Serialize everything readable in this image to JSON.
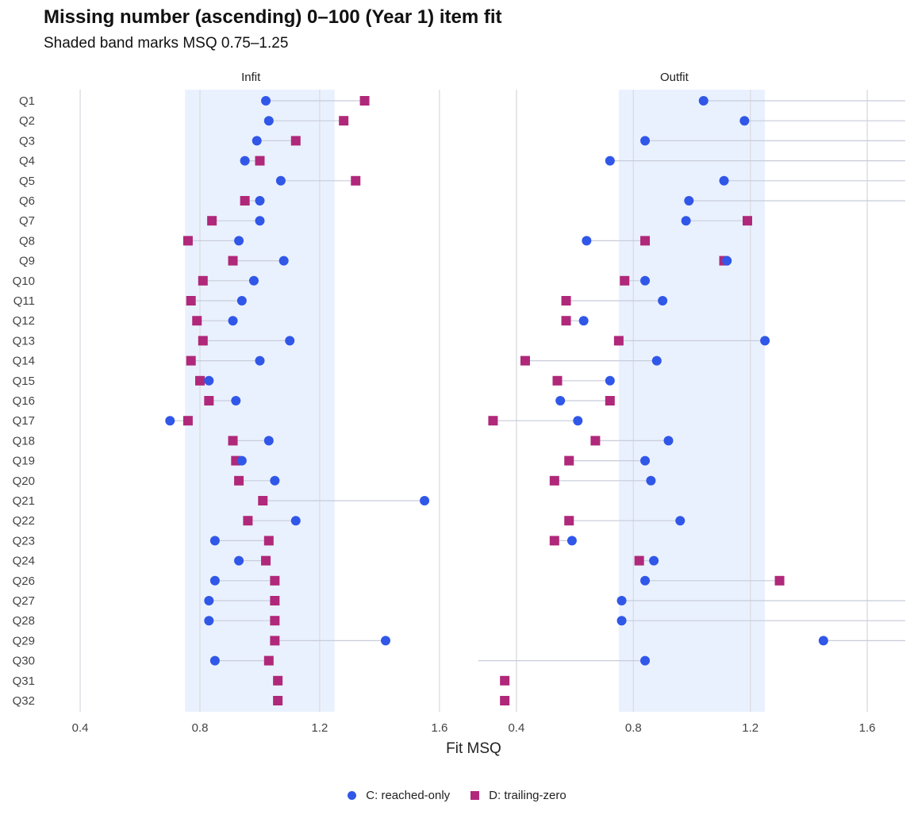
{
  "chart_data": {
    "type": "scatter",
    "title": "Missing number (ascending) 0–100 (Year 1) item fit",
    "subtitle": "Shaded band marks MSQ 0.75–1.25",
    "xlabel": "Fit MSQ",
    "panels": [
      "Infit",
      "Outfit"
    ],
    "categories": [
      "Q1",
      "Q2",
      "Q3",
      "Q4",
      "Q5",
      "Q6",
      "Q7",
      "Q8",
      "Q9",
      "Q10",
      "Q11",
      "Q12",
      "Q13",
      "Q14",
      "Q15",
      "Q16",
      "Q17",
      "Q18",
      "Q19",
      "Q20",
      "Q21",
      "Q22",
      "Q23",
      "Q24",
      "Q26",
      "Q27",
      "Q28",
      "Q29",
      "Q30",
      "Q31",
      "Q32"
    ],
    "xlim": [
      0.27,
      1.73
    ],
    "xticks": [
      "0.4",
      "0.8",
      "1.2",
      "1.6"
    ],
    "xtick_values": [
      0.4,
      0.8,
      1.2,
      1.6
    ],
    "band": [
      0.75,
      1.25
    ],
    "grid": true,
    "legend_position": "bottom",
    "series": [
      {
        "name": "C: reached-only",
        "shape": "circle",
        "color": "#3057e8",
        "infit": [
          1.02,
          1.03,
          0.99,
          0.95,
          1.07,
          1.0,
          1.0,
          0.93,
          1.08,
          0.98,
          0.94,
          0.91,
          1.1,
          1.0,
          0.83,
          0.92,
          0.7,
          1.03,
          0.94,
          1.05,
          1.55,
          1.12,
          0.85,
          0.93,
          0.85,
          0.83,
          0.83,
          1.42,
          0.85,
          null,
          null
        ],
        "outfit": [
          1.04,
          1.18,
          0.84,
          0.72,
          1.11,
          0.99,
          0.98,
          0.64,
          1.12,
          0.84,
          0.9,
          0.63,
          1.25,
          0.88,
          0.72,
          0.55,
          0.61,
          0.92,
          0.84,
          0.86,
          null,
          0.96,
          0.59,
          0.87,
          0.84,
          0.76,
          0.76,
          1.45,
          0.84,
          null,
          null
        ]
      },
      {
        "name": "D: trailing-zero",
        "shape": "square",
        "color": "#b0287a",
        "infit": [
          1.35,
          1.28,
          1.12,
          1.0,
          1.32,
          0.95,
          0.84,
          0.76,
          0.91,
          0.81,
          0.77,
          0.79,
          0.81,
          0.77,
          0.8,
          0.83,
          0.76,
          0.91,
          0.92,
          0.93,
          1.01,
          0.96,
          1.03,
          1.02,
          1.05,
          1.05,
          1.05,
          1.05,
          1.03,
          1.06,
          1.06
        ],
        "outfit": [
          null,
          null,
          null,
          null,
          null,
          null,
          1.19,
          0.84,
          1.11,
          0.77,
          0.57,
          0.57,
          0.75,
          0.43,
          0.54,
          0.72,
          0.32,
          0.67,
          0.58,
          0.53,
          null,
          0.58,
          0.53,
          0.82,
          1.3,
          null,
          null,
          null,
          null,
          0.36,
          0.36
        ]
      }
    ]
  }
}
